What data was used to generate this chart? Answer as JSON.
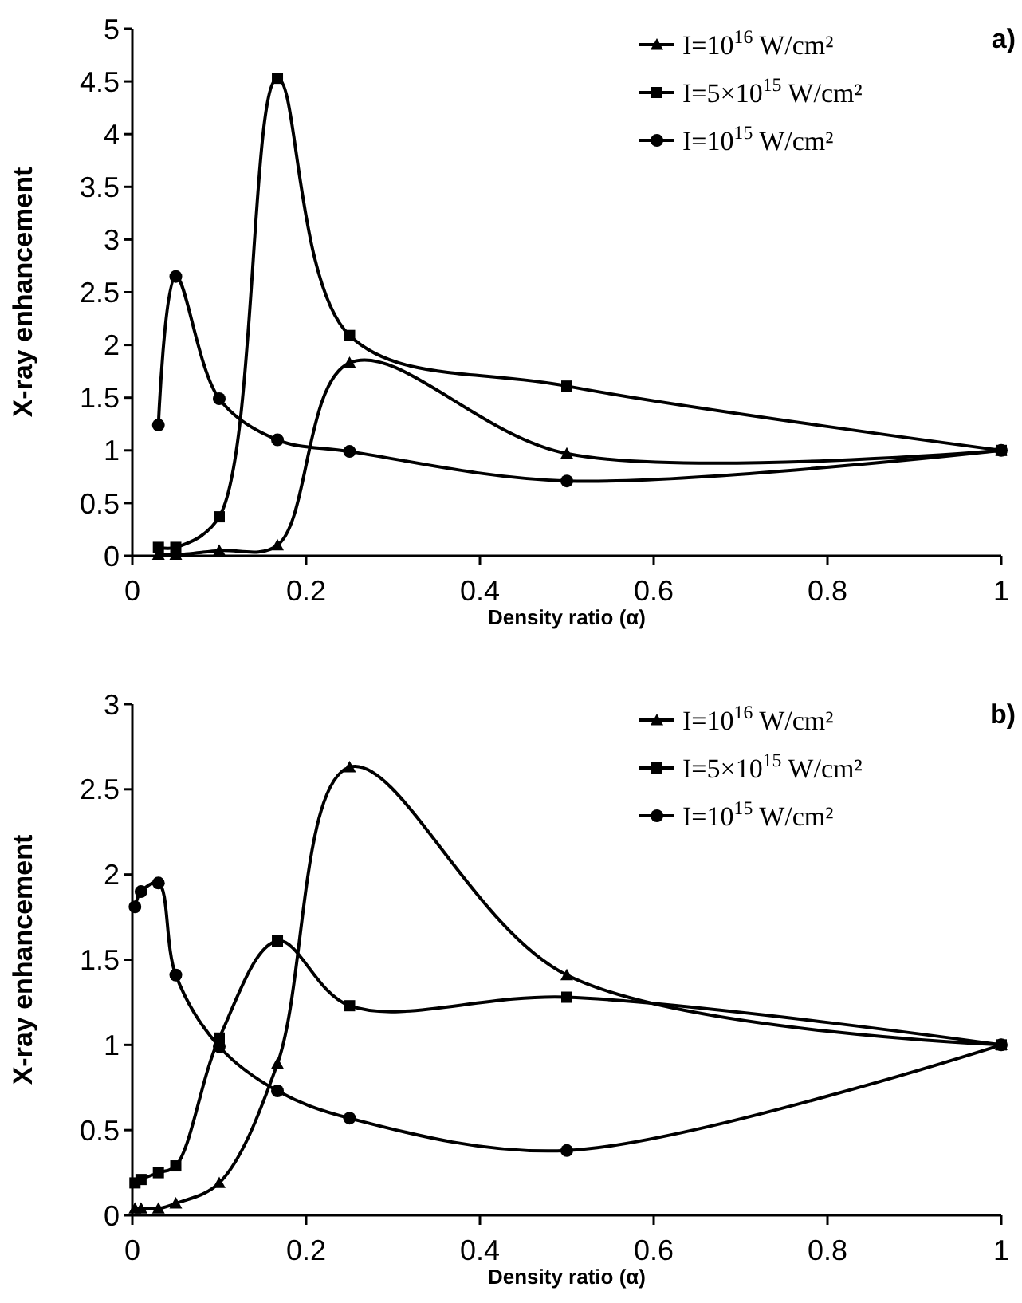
{
  "chart_data": [
    {
      "type": "line",
      "title": "a)",
      "xlabel": "Density ratio (α)",
      "ylabel": "X-ray enhancement",
      "xlim": [
        0,
        1
      ],
      "xticks": [
        0,
        0.2,
        0.4,
        0.6,
        0.8,
        1
      ],
      "ylim": [
        0,
        5
      ],
      "yticks": [
        0,
        0.5,
        1,
        1.5,
        2,
        2.5,
        3,
        3.5,
        4,
        4.5,
        5
      ],
      "grid": false,
      "legend": "top right",
      "series": [
        {
          "name": "I=10$^{16}$ W/cm²",
          "color": "#000000",
          "marker": "triangle",
          "x": [
            0.03,
            0.05,
            0.1,
            0.167,
            0.25,
            0.5,
            1
          ],
          "values": [
            0.01,
            0.01,
            0.05,
            0.1,
            1.83,
            0.97,
            1
          ]
        },
        {
          "name": "I=5×10$^{15}$ W/cm²",
          "color": "#000000",
          "marker": "square",
          "x": [
            0.03,
            0.05,
            0.1,
            0.167,
            0.25,
            0.5,
            1
          ],
          "values": [
            0.08,
            0.08,
            0.37,
            4.53,
            2.09,
            1.61,
            1
          ]
        },
        {
          "name": "I=10$^{15}$ W/cm²",
          "color": "#000000",
          "marker": "circle",
          "x": [
            0.03,
            0.05,
            0.1,
            0.167,
            0.25,
            0.5,
            1
          ],
          "values": [
            1.24,
            2.65,
            1.49,
            1.1,
            0.99,
            0.71,
            1
          ]
        }
      ]
    },
    {
      "type": "line",
      "title": "b)",
      "xlabel": "Density ratio (α)",
      "ylabel": "X-ray enhancement",
      "xlim": [
        0,
        1
      ],
      "xticks": [
        0,
        0.2,
        0.4,
        0.6,
        0.8,
        1
      ],
      "ylim": [
        0,
        3
      ],
      "yticks": [
        0,
        0.5,
        1,
        1.5,
        2,
        2.5,
        3
      ],
      "grid": false,
      "legend": "top right",
      "series": [
        {
          "name": "I=10$^{16}$ W/cm²",
          "color": "#000000",
          "marker": "triangle",
          "x": [
            0.003,
            0.01,
            0.03,
            0.05,
            0.1,
            0.167,
            0.25,
            0.5,
            1
          ],
          "values": [
            0.04,
            0.04,
            0.04,
            0.07,
            0.19,
            0.89,
            2.63,
            1.41,
            1
          ]
        },
        {
          "name": "I=5×10$^{15}$ W/cm²",
          "color": "#000000",
          "marker": "square",
          "x": [
            0.003,
            0.01,
            0.03,
            0.05,
            0.1,
            0.167,
            0.25,
            0.5,
            1
          ],
          "values": [
            0.19,
            0.21,
            0.25,
            0.29,
            1.04,
            1.61,
            1.23,
            1.28,
            1
          ]
        },
        {
          "name": "I=10$^{15}$ W/cm²",
          "color": "#000000",
          "marker": "circle",
          "x": [
            0.003,
            0.01,
            0.03,
            0.05,
            0.1,
            0.167,
            0.25,
            0.5,
            1
          ],
          "values": [
            1.81,
            1.9,
            1.95,
            1.41,
            0.99,
            0.73,
            0.57,
            0.38,
            1
          ]
        }
      ]
    }
  ]
}
